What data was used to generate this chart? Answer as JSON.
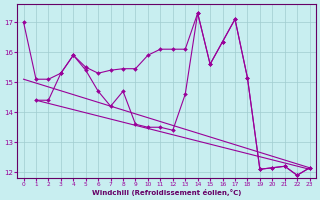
{
  "xlabel": "Windchill (Refroidissement éolien,°C)",
  "xlim": [
    -0.5,
    23.5
  ],
  "ylim": [
    11.8,
    17.6
  ],
  "yticks": [
    12,
    13,
    14,
    15,
    16,
    17
  ],
  "xticks": [
    0,
    1,
    2,
    3,
    4,
    5,
    6,
    7,
    8,
    9,
    10,
    11,
    12,
    13,
    14,
    15,
    16,
    17,
    18,
    19,
    20,
    21,
    22,
    23
  ],
  "bg_color": "#c8eef0",
  "line_color": "#990099",
  "grid_color": "#a0ccd0",
  "line1_x": [
    0,
    1,
    2,
    3,
    4,
    5,
    6,
    7,
    8,
    9,
    10,
    11,
    12,
    13,
    14,
    15,
    16,
    17,
    18,
    19,
    20,
    21,
    22,
    23
  ],
  "line1_y": [
    17.0,
    15.1,
    15.1,
    15.3,
    15.9,
    15.5,
    15.3,
    15.4,
    15.45,
    15.45,
    15.9,
    16.1,
    16.1,
    16.1,
    17.3,
    15.6,
    16.35,
    17.1,
    15.15,
    12.1,
    12.15,
    12.2,
    11.9,
    12.15
  ],
  "line2_x": [
    1,
    2,
    3,
    4,
    5,
    6,
    7,
    8,
    9,
    10,
    11,
    12,
    13,
    14,
    15,
    16,
    17,
    18,
    19,
    20,
    21,
    22,
    23
  ],
  "line2_y": [
    14.4,
    14.4,
    15.3,
    15.9,
    15.4,
    14.7,
    14.2,
    14.7,
    13.6,
    13.5,
    13.5,
    13.4,
    14.6,
    17.3,
    15.6,
    16.35,
    17.1,
    15.15,
    12.1,
    12.15,
    12.2,
    11.9,
    12.15
  ],
  "line3_start_x": 0,
  "line3_start_y": 15.1,
  "line3_end_x": 23,
  "line3_end_y": 12.15,
  "line4_start_x": 1,
  "line4_start_y": 14.4,
  "line4_end_x": 23,
  "line4_end_y": 12.1
}
